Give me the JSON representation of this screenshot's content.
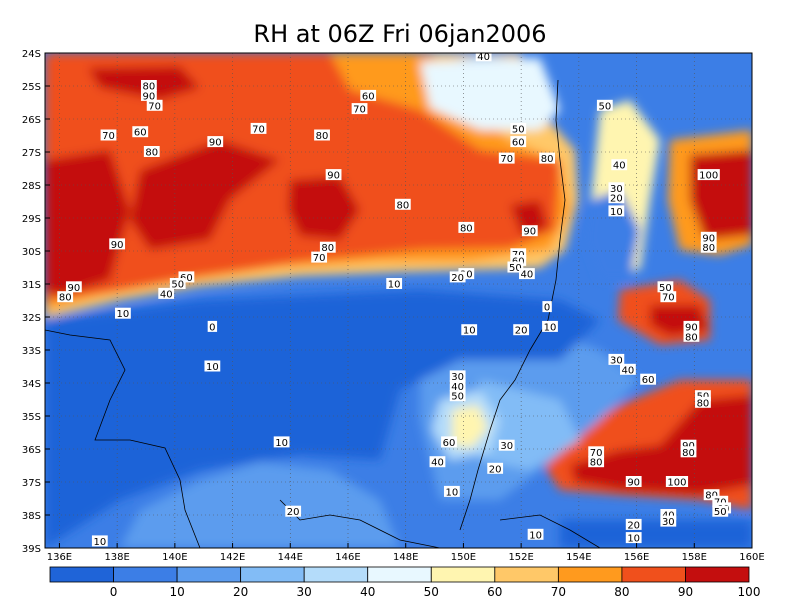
{
  "chart_data": {
    "type": "contour",
    "title": "RH at 06Z Fri 06jan2006",
    "variable": "RH",
    "xlim": [
      135.5,
      160
    ],
    "ylim": [
      -39,
      -24
    ],
    "grid": "dotted",
    "x_ticks": [
      136,
      138,
      140,
      142,
      144,
      146,
      148,
      150,
      152,
      154,
      156,
      158,
      160
    ],
    "x_tick_labels": [
      "136E",
      "138E",
      "140E",
      "142E",
      "144E",
      "146E",
      "148E",
      "150E",
      "152E",
      "154E",
      "156E",
      "158E",
      "160E"
    ],
    "y_ticks": [
      -24,
      -25,
      -26,
      -27,
      -28,
      -29,
      -30,
      -31,
      -32,
      -33,
      -34,
      -35,
      -36,
      -37,
      -38,
      -39
    ],
    "y_tick_labels": [
      "24S",
      "25S",
      "26S",
      "27S",
      "28S",
      "29S",
      "30S",
      "31S",
      "32S",
      "33S",
      "34S",
      "35S",
      "36S",
      "37S",
      "38S",
      "39S"
    ],
    "levels": [
      10,
      20,
      30,
      40,
      50,
      60,
      70,
      80,
      90,
      100
    ],
    "colorbar": {
      "colors": [
        "#1f64d8",
        "#3c7ee6",
        "#5c9cee",
        "#82bcf6",
        "#b4dcfa",
        "#e8f8ff",
        "#fff5b0",
        "#ffc868",
        "#ff9a1e",
        "#f0501c",
        "#c40e0e"
      ],
      "labels": [
        "0",
        "10",
        "20",
        "30",
        "40",
        "50",
        "60",
        "70",
        "80",
        "90",
        "100"
      ]
    },
    "contour_labels": [
      {
        "text": "40",
        "x": 150.7,
        "y": -24.1
      },
      {
        "text": "80",
        "x": 139.1,
        "y": -25.0
      },
      {
        "text": "90",
        "x": 139.1,
        "y": -25.3
      },
      {
        "text": "70",
        "x": 139.3,
        "y": -25.6
      },
      {
        "text": "60",
        "x": 146.7,
        "y": -25.3
      },
      {
        "text": "70",
        "x": 146.4,
        "y": -25.7
      },
      {
        "text": "50",
        "x": 154.9,
        "y": -25.6
      },
      {
        "text": "70",
        "x": 137.7,
        "y": -26.5
      },
      {
        "text": "60",
        "x": 138.8,
        "y": -26.4
      },
      {
        "text": "70",
        "x": 142.9,
        "y": -26.3
      },
      {
        "text": "90",
        "x": 141.4,
        "y": -26.7
      },
      {
        "text": "80",
        "x": 145.1,
        "y": -26.5
      },
      {
        "text": "50",
        "x": 151.9,
        "y": -26.3
      },
      {
        "text": "60",
        "x": 151.9,
        "y": -26.7
      },
      {
        "text": "80",
        "x": 139.2,
        "y": -27.0
      },
      {
        "text": "70",
        "x": 151.5,
        "y": -27.2
      },
      {
        "text": "80",
        "x": 152.9,
        "y": -27.2
      },
      {
        "text": "90",
        "x": 145.5,
        "y": -27.7
      },
      {
        "text": "40",
        "x": 155.4,
        "y": -27.4
      },
      {
        "text": "100",
        "x": 158.5,
        "y": -27.7
      },
      {
        "text": "30",
        "x": 155.3,
        "y": -28.1
      },
      {
        "text": "20",
        "x": 155.3,
        "y": -28.4
      },
      {
        "text": "10",
        "x": 155.3,
        "y": -28.8
      },
      {
        "text": "80",
        "x": 147.9,
        "y": -28.6
      },
      {
        "text": "80",
        "x": 150.1,
        "y": -29.3
      },
      {
        "text": "90",
        "x": 152.3,
        "y": -29.4
      },
      {
        "text": "90",
        "x": 158.5,
        "y": -29.6
      },
      {
        "text": "80",
        "x": 158.5,
        "y": -29.9
      },
      {
        "text": "90",
        "x": 138.0,
        "y": -29.8
      },
      {
        "text": "80",
        "x": 145.3,
        "y": -29.9
      },
      {
        "text": "70",
        "x": 145.0,
        "y": -30.2
      },
      {
        "text": "70",
        "x": 151.9,
        "y": -30.1
      },
      {
        "text": "60",
        "x": 151.9,
        "y": -30.3
      },
      {
        "text": "50",
        "x": 151.8,
        "y": -30.5
      },
      {
        "text": "40",
        "x": 152.2,
        "y": -30.7
      },
      {
        "text": "30",
        "x": 150.1,
        "y": -30.7
      },
      {
        "text": "20",
        "x": 149.8,
        "y": -30.8
      },
      {
        "text": "60",
        "x": 140.4,
        "y": -30.8
      },
      {
        "text": "50",
        "x": 140.1,
        "y": -31.0
      },
      {
        "text": "40",
        "x": 139.7,
        "y": -31.3
      },
      {
        "text": "90",
        "x": 136.5,
        "y": -31.1
      },
      {
        "text": "80",
        "x": 136.2,
        "y": -31.4
      },
      {
        "text": "10",
        "x": 147.6,
        "y": -31.0
      },
      {
        "text": "50",
        "x": 157.0,
        "y": -31.1
      },
      {
        "text": "70",
        "x": 157.1,
        "y": -31.4
      },
      {
        "text": "10",
        "x": 138.2,
        "y": -31.9
      },
      {
        "text": "0",
        "x": 152.9,
        "y": -31.7
      },
      {
        "text": "0",
        "x": 141.3,
        "y": -32.3
      },
      {
        "text": "10",
        "x": 150.2,
        "y": -32.4
      },
      {
        "text": "20",
        "x": 152.0,
        "y": -32.4
      },
      {
        "text": "10",
        "x": 153.0,
        "y": -32.3
      },
      {
        "text": "90",
        "x": 157.9,
        "y": -32.3
      },
      {
        "text": "80",
        "x": 157.9,
        "y": -32.6
      },
      {
        "text": "10",
        "x": 141.3,
        "y": -33.5
      },
      {
        "text": "30",
        "x": 155.3,
        "y": -33.3
      },
      {
        "text": "40",
        "x": 155.7,
        "y": -33.6
      },
      {
        "text": "60",
        "x": 156.4,
        "y": -33.9
      },
      {
        "text": "30",
        "x": 149.8,
        "y": -33.8
      },
      {
        "text": "40",
        "x": 149.8,
        "y": -34.1
      },
      {
        "text": "50",
        "x": 149.8,
        "y": -34.4
      },
      {
        "text": "50",
        "x": 158.3,
        "y": -34.4
      },
      {
        "text": "80",
        "x": 158.3,
        "y": -34.6
      },
      {
        "text": "60",
        "x": 149.5,
        "y": -35.8
      },
      {
        "text": "90",
        "x": 157.8,
        "y": -35.9
      },
      {
        "text": "80",
        "x": 157.8,
        "y": -36.1
      },
      {
        "text": "10",
        "x": 143.7,
        "y": -35.8
      },
      {
        "text": "30",
        "x": 151.5,
        "y": -35.9
      },
      {
        "text": "70",
        "x": 154.6,
        "y": -36.1
      },
      {
        "text": "80",
        "x": 154.6,
        "y": -36.4
      },
      {
        "text": "40",
        "x": 149.1,
        "y": -36.4
      },
      {
        "text": "20",
        "x": 151.1,
        "y": -36.6
      },
      {
        "text": "90",
        "x": 155.9,
        "y": -37.0
      },
      {
        "text": "100",
        "x": 157.4,
        "y": -37.0
      },
      {
        "text": "10",
        "x": 149.6,
        "y": -37.3
      },
      {
        "text": "80",
        "x": 158.6,
        "y": -37.4
      },
      {
        "text": "70",
        "x": 158.9,
        "y": -37.6
      },
      {
        "text": "60",
        "x": 159.0,
        "y": -37.8
      },
      {
        "text": "50",
        "x": 158.9,
        "y": -37.9
      },
      {
        "text": "40",
        "x": 157.1,
        "y": -38.0
      },
      {
        "text": "30",
        "x": 157.1,
        "y": -38.2
      },
      {
        "text": "20",
        "x": 155.9,
        "y": -38.3
      },
      {
        "text": "10",
        "x": 155.9,
        "y": -38.7
      },
      {
        "text": "20",
        "x": 144.1,
        "y": -37.9
      },
      {
        "text": "10",
        "x": 152.5,
        "y": -38.6
      },
      {
        "text": "10",
        "x": 137.4,
        "y": -38.8
      }
    ]
  }
}
